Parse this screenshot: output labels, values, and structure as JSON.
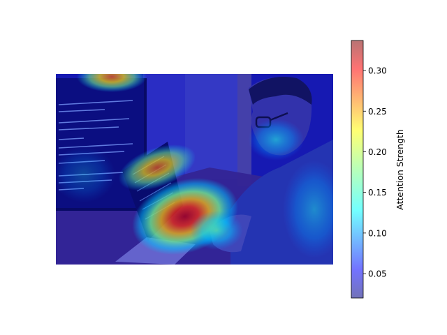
{
  "chart_data": {
    "type": "heatmap",
    "title": "",
    "xlabel": "",
    "ylabel": "",
    "colorbar": {
      "label": "Attention Strength",
      "range": [
        0.02,
        0.337
      ],
      "ticks": [
        0.05,
        0.1,
        0.15,
        0.2,
        0.25,
        0.3
      ],
      "tick_labels": [
        "0.05",
        "0.10",
        "0.15",
        "0.20",
        "0.25",
        "0.30"
      ],
      "colormap": "jet",
      "alpha": 0.5
    },
    "underlying_image": "man-working-on-laptop-with-code-on-monitor",
    "hotspots": [
      {
        "region": "laptop-keyboard-hands",
        "value": 0.33
      },
      {
        "region": "laptop-screen-top",
        "value": 0.27
      },
      {
        "region": "monitor-top-edge",
        "value": 0.26
      },
      {
        "region": "hands-on-keyboard",
        "value": 0.22
      },
      {
        "region": "face-and-glasses",
        "value": 0.13
      },
      {
        "region": "right-shoulder",
        "value": 0.12
      }
    ],
    "background_value": 0.03
  }
}
